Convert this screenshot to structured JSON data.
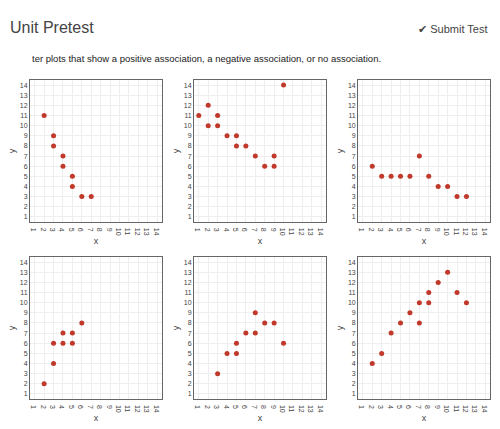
{
  "chart_data": [
    {
      "type": "scatter",
      "title": "Unit Pretest",
      "subtitle": "ter plots that show a positive association, a negative association, or no association.",
      "annotations": [
        "✔ Submit Test"
      ],
      "xlabel": "x",
      "ylabel": "y",
      "x": [
        2,
        3,
        3,
        4,
        4,
        5,
        5,
        6,
        7
      ],
      "values": [
        11,
        9,
        8,
        7,
        6,
        5,
        4,
        3,
        3
      ],
      "color": "#c0392b",
      "xlim": [
        0.5,
        14.5
      ],
      "ylim": [
        0.5,
        14.5
      ],
      "xticks": [
        1,
        2,
        3,
        4,
        5,
        6,
        7,
        8,
        9,
        10,
        11,
        12,
        13,
        14
      ],
      "yticks": [
        1,
        2,
        3,
        4,
        5,
        6,
        7,
        8,
        9,
        10,
        11,
        12,
        13,
        14
      ],
      "grid": true
    },
    {
      "type": "scatter",
      "xlabel": "x",
      "ylabel": "y",
      "x": [
        1,
        2,
        2,
        3,
        3,
        4,
        5,
        5,
        6,
        7,
        8,
        9,
        9,
        10
      ],
      "values": [
        11,
        12,
        10,
        11,
        10,
        9,
        9,
        8,
        8,
        7,
        6,
        7,
        6,
        14
      ],
      "color": "#c0392b",
      "xlim": [
        0.5,
        14.5
      ],
      "ylim": [
        0.5,
        14.5
      ],
      "xticks": [
        1,
        2,
        3,
        4,
        5,
        6,
        7,
        8,
        9,
        10,
        11,
        12,
        13,
        14
      ],
      "yticks": [
        1,
        2,
        3,
        4,
        5,
        6,
        7,
        8,
        9,
        10,
        11,
        12,
        13,
        14
      ],
      "grid": true
    },
    {
      "type": "scatter",
      "xlabel": "x",
      "ylabel": "y",
      "x": [
        2,
        3,
        4,
        5,
        6,
        7,
        8,
        9,
        10,
        11,
        12
      ],
      "values": [
        6,
        5,
        5,
        5,
        5,
        7,
        5,
        4,
        4,
        3,
        3
      ],
      "color": "#c0392b",
      "xlim": [
        0.5,
        14.5
      ],
      "ylim": [
        0.5,
        14.5
      ],
      "xticks": [
        1,
        2,
        3,
        4,
        5,
        6,
        7,
        8,
        9,
        10,
        11,
        12,
        13,
        14
      ],
      "yticks": [
        1,
        2,
        3,
        4,
        5,
        6,
        7,
        8,
        9,
        10,
        11,
        12,
        13,
        14
      ],
      "grid": true
    },
    {
      "type": "scatter",
      "xlabel": "x",
      "ylabel": "y",
      "x": [
        2,
        3,
        3,
        4,
        4,
        5,
        5,
        6
      ],
      "values": [
        2,
        4,
        6,
        6,
        7,
        7,
        6,
        8
      ],
      "color": "#c0392b",
      "xlim": [
        0.5,
        14.5
      ],
      "ylim": [
        0.5,
        14.5
      ],
      "xticks": [
        1,
        2,
        3,
        4,
        5,
        6,
        7,
        8,
        9,
        10,
        11,
        12,
        13,
        14
      ],
      "yticks": [
        1,
        2,
        3,
        4,
        5,
        6,
        7,
        8,
        9,
        10,
        11,
        12,
        13,
        14
      ],
      "grid": true
    },
    {
      "type": "scatter",
      "xlabel": "x",
      "ylabel": "y",
      "x": [
        3,
        4,
        5,
        5,
        6,
        7,
        7,
        8,
        9,
        10
      ],
      "values": [
        3,
        5,
        6,
        5,
        7,
        7,
        9,
        8,
        8,
        6
      ],
      "color": "#c0392b",
      "xlim": [
        0.5,
        14.5
      ],
      "ylim": [
        0.5,
        14.5
      ],
      "xticks": [
        1,
        2,
        3,
        4,
        5,
        6,
        7,
        8,
        9,
        10,
        11,
        12,
        13,
        14
      ],
      "yticks": [
        1,
        2,
        3,
        4,
        5,
        6,
        7,
        8,
        9,
        10,
        11,
        12,
        13,
        14
      ],
      "grid": true
    },
    {
      "type": "scatter",
      "xlabel": "x",
      "ylabel": "y",
      "x": [
        2,
        3,
        4,
        5,
        6,
        7,
        7,
        8,
        8,
        9,
        10,
        11,
        12
      ],
      "values": [
        4,
        5,
        7,
        8,
        9,
        8,
        10,
        10,
        11,
        12,
        13,
        11,
        10
      ],
      "color": "#c0392b",
      "xlim": [
        0.5,
        14.5
      ],
      "ylim": [
        0.5,
        14.5
      ],
      "xticks": [
        1,
        2,
        3,
        4,
        5,
        6,
        7,
        8,
        9,
        10,
        11,
        12,
        13,
        14
      ],
      "yticks": [
        1,
        2,
        3,
        4,
        5,
        6,
        7,
        8,
        9,
        10,
        11,
        12,
        13,
        14
      ],
      "grid": true
    }
  ]
}
